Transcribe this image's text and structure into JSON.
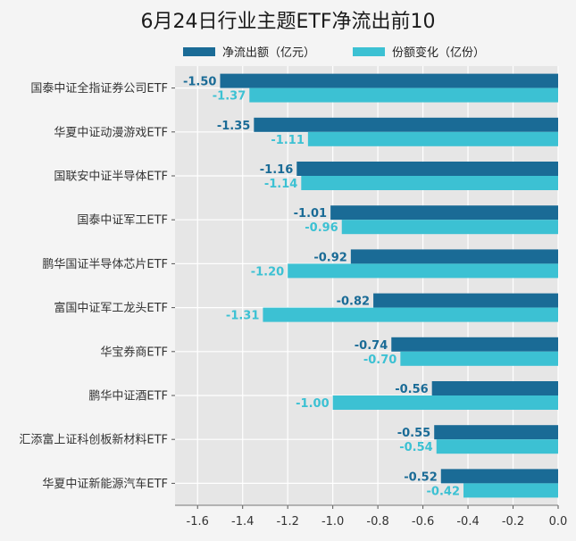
{
  "chart_data": {
    "type": "bar",
    "orientation": "horizontal",
    "title": "6月24日行业主题ETF净流出前10",
    "categories": [
      "国泰中证全指证券公司ETF",
      "华夏中证动漫游戏ETF",
      "国联安中证半导体ETF",
      "国泰中证军工ETF",
      "鹏华国证半导体芯片ETF",
      "富国中证军工龙头ETF",
      "华宝券商ETF",
      "鹏华中证酒ETF",
      "汇添富上证科创板新材料ETF",
      "华夏中证新能源汽车ETF"
    ],
    "series": [
      {
        "name": "净流出额（亿元）",
        "color": "#1a6b96",
        "values": [
          -1.5,
          -1.35,
          -1.16,
          -1.01,
          -0.92,
          -0.82,
          -0.74,
          -0.56,
          -0.55,
          -0.52
        ],
        "labels": [
          "-1.50",
          "-1.35",
          "-1.16",
          "-1.01",
          "-0.92",
          "-0.82",
          "-0.74",
          "-0.56",
          "-0.55",
          "-0.52"
        ]
      },
      {
        "name": "份额变化（亿份）",
        "color": "#3cc1d3",
        "values": [
          -1.37,
          -1.11,
          -1.14,
          -0.96,
          -1.2,
          -1.31,
          -0.7,
          -1.0,
          -0.54,
          -0.42
        ],
        "labels": [
          "-1.37",
          "-1.11",
          "-1.14",
          "-0.96",
          "-1.20",
          "-1.31",
          "-0.70",
          "-1.00",
          "-0.54",
          "-0.42"
        ]
      }
    ],
    "xlim": [
      -1.7,
      0
    ],
    "xticks": [
      "-1.6",
      "-1.4",
      "-1.2",
      "-1.0",
      "-0.8",
      "-0.6",
      "-0.4",
      "-0.2",
      "0.0"
    ],
    "xtick_values": [
      -1.6,
      -1.4,
      -1.2,
      -1.0,
      -0.8,
      -0.6,
      -0.4,
      -0.2,
      0.0
    ],
    "grid": true,
    "legend_position": "top"
  }
}
